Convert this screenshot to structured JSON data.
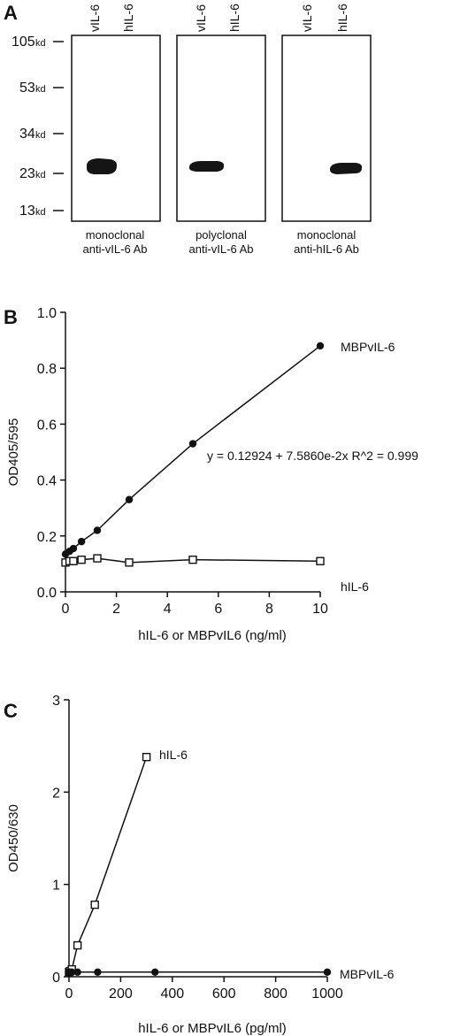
{
  "panel_labels": {
    "a": "A",
    "b": "B",
    "c": "C"
  },
  "blot": {
    "markers": [
      "105 kd",
      "53 kd",
      "34 kd",
      "23 kd",
      "13 kd"
    ],
    "lanes": [
      "vIL-6",
      "hIL-6"
    ],
    "panels": [
      {
        "caption_line1": "monoclonal",
        "caption_line2": "anti-vIL-6 Ab",
        "band_lane": "vIL-6"
      },
      {
        "caption_line1": "polyclonal",
        "caption_line2": "anti-vIL-6 Ab",
        "band_lane": "vIL-6"
      },
      {
        "caption_line1": "monoclonal",
        "caption_line2": "anti-hIL-6 Ab",
        "band_lane": "hIL-6"
      }
    ]
  },
  "chart_data": [
    {
      "panel": "B",
      "type": "line",
      "xlabel": "hIL-6 or MBPvIL6 (ng/ml)",
      "ylabel": "OD405/595",
      "xlim": [
        0,
        10
      ],
      "ylim": [
        0,
        1.0
      ],
      "xticks": [
        "0",
        "2",
        "4",
        "6",
        "8",
        "10"
      ],
      "yticks": [
        "0.0",
        "0.2",
        "0.4",
        "0.6",
        "0.8",
        "1.0"
      ],
      "annotation": "y = 0.12924 + 7.5860e-2x   R^2 = 0.999",
      "series": [
        {
          "name": "MBPvIL-6",
          "marker": "filled-circle",
          "x": [
            0,
            0.16,
            0.31,
            0.63,
            1.25,
            2.5,
            5,
            10
          ],
          "y": [
            0.135,
            0.145,
            0.155,
            0.18,
            0.22,
            0.33,
            0.53,
            0.88
          ]
        },
        {
          "name": "hIL-6",
          "marker": "open-square",
          "x": [
            0,
            0.16,
            0.31,
            0.63,
            1.25,
            2.5,
            5,
            10
          ],
          "y": [
            0.105,
            0.11,
            0.11,
            0.115,
            0.12,
            0.105,
            0.115,
            0.11
          ]
        }
      ]
    },
    {
      "panel": "C",
      "type": "line",
      "xlabel": "hIL-6 or MBPvIL6 (pg/ml)",
      "ylabel": "OD450/630",
      "xlim": [
        0,
        1000
      ],
      "ylim": [
        0,
        3
      ],
      "xticks": [
        "0",
        "200",
        "400",
        "600",
        "800",
        "1000"
      ],
      "yticks": [
        "0",
        "1",
        "2",
        "3"
      ],
      "series": [
        {
          "name": "hIL-6",
          "marker": "open-square",
          "x": [
            0,
            3.7,
            11,
            33,
            100,
            300
          ],
          "y": [
            0.05,
            0.06,
            0.08,
            0.34,
            0.78,
            2.38
          ]
        },
        {
          "name": "MBPvIL-6",
          "marker": "filled-circle",
          "x": [
            0,
            3.7,
            11,
            33,
            111,
            333,
            1000
          ],
          "y": [
            0.05,
            0.05,
            0.05,
            0.05,
            0.05,
            0.05,
            0.05
          ]
        }
      ]
    }
  ]
}
